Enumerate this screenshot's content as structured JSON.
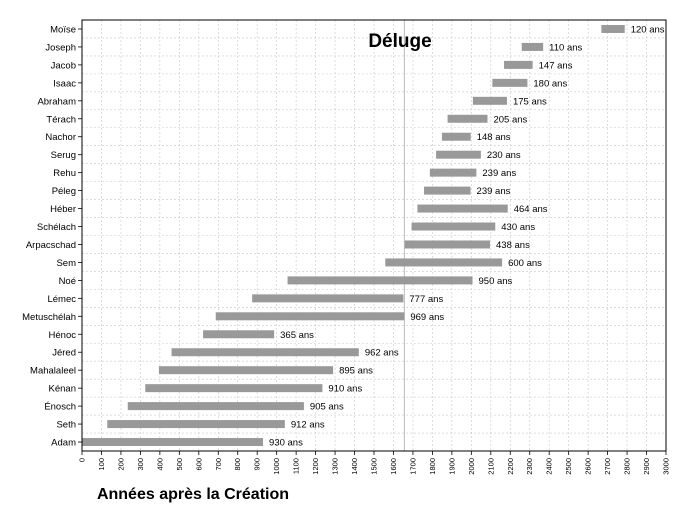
{
  "chart_data": {
    "type": "bar",
    "orientation": "horizontal-floating",
    "title": "Déluge",
    "xlabel": "Années après la Création",
    "ylabel": "",
    "xlim": [
      0,
      3000
    ],
    "xticks": [
      0,
      100,
      200,
      300,
      400,
      500,
      600,
      700,
      800,
      900,
      1000,
      1100,
      1200,
      1300,
      1400,
      1500,
      1600,
      1700,
      1800,
      1900,
      2000,
      2100,
      2200,
      2300,
      2400,
      2500,
      2600,
      2700,
      2800,
      2900,
      3000
    ],
    "grid": true,
    "bar_color": "#999999",
    "reference_line": {
      "x": 1656
    },
    "persons": [
      {
        "name": "Adam",
        "start": 0,
        "end": 930,
        "label": "930 ans"
      },
      {
        "name": "Seth",
        "start": 130,
        "end": 1042,
        "label": "912 ans"
      },
      {
        "name": "Énosch",
        "start": 235,
        "end": 1140,
        "label": "905 ans"
      },
      {
        "name": "Kénan",
        "start": 325,
        "end": 1235,
        "label": "910 ans"
      },
      {
        "name": "Mahalaleel",
        "start": 395,
        "end": 1290,
        "label": "895 ans"
      },
      {
        "name": "Jéred",
        "start": 460,
        "end": 1422,
        "label": "962 ans"
      },
      {
        "name": "Hénoc",
        "start": 622,
        "end": 987,
        "label": "365 ans"
      },
      {
        "name": "Metuschélah",
        "start": 687,
        "end": 1656,
        "label": "969 ans"
      },
      {
        "name": "Lémec",
        "start": 874,
        "end": 1651,
        "label": "777 ans"
      },
      {
        "name": "Noé",
        "start": 1056,
        "end": 2006,
        "label": "950 ans"
      },
      {
        "name": "Sem",
        "start": 1558,
        "end": 2158,
        "label": "600 ans"
      },
      {
        "name": "Arpacschad",
        "start": 1658,
        "end": 2096,
        "label": "438 ans"
      },
      {
        "name": "Schélach",
        "start": 1693,
        "end": 2123,
        "label": "430 ans"
      },
      {
        "name": "Héber",
        "start": 1723,
        "end": 2187,
        "label": "464 ans"
      },
      {
        "name": "Péleg",
        "start": 1757,
        "end": 1996,
        "label": "239 ans"
      },
      {
        "name": "Rehu",
        "start": 1787,
        "end": 2026,
        "label": "239 ans"
      },
      {
        "name": "Serug",
        "start": 1819,
        "end": 2049,
        "label": "230 ans"
      },
      {
        "name": "Nachor",
        "start": 1849,
        "end": 1997,
        "label": "148 ans"
      },
      {
        "name": "Térach",
        "start": 1878,
        "end": 2083,
        "label": "205 ans"
      },
      {
        "name": "Abraham",
        "start": 2008,
        "end": 2183,
        "label": "175 ans"
      },
      {
        "name": "Isaac",
        "start": 2108,
        "end": 2288,
        "label": "180 ans"
      },
      {
        "name": "Jacob",
        "start": 2168,
        "end": 2315,
        "label": "147 ans"
      },
      {
        "name": "Joseph",
        "start": 2259,
        "end": 2369,
        "label": "110 ans"
      },
      {
        "name": "Moïse",
        "start": 2668,
        "end": 2788,
        "label": "120 ans"
      }
    ]
  }
}
